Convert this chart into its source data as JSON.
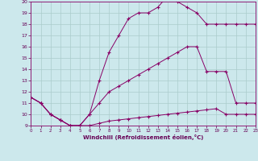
{
  "xlabel": "Windchill (Refroidissement éolien,°C)",
  "background_color": "#cce8ec",
  "grid_color": "#aacccc",
  "line_color": "#880066",
  "xlim": [
    0,
    23
  ],
  "ylim": [
    9,
    20
  ],
  "xticks": [
    0,
    1,
    2,
    3,
    4,
    5,
    6,
    7,
    8,
    9,
    10,
    11,
    12,
    13,
    14,
    15,
    16,
    17,
    18,
    19,
    20,
    21,
    22,
    23
  ],
  "yticks": [
    9,
    10,
    11,
    12,
    13,
    14,
    15,
    16,
    17,
    18,
    19,
    20
  ],
  "curve1_x": [
    0,
    1,
    2,
    3,
    4,
    5,
    6,
    7,
    8,
    9,
    10,
    11,
    12,
    13,
    14,
    15,
    16,
    17,
    18,
    19,
    20,
    21,
    22,
    23
  ],
  "curve1_y": [
    11.5,
    11.0,
    10.0,
    9.5,
    9.0,
    9.0,
    10.0,
    13.0,
    15.5,
    17.0,
    18.5,
    19.0,
    19.0,
    19.5,
    20.5,
    20.0,
    19.5,
    19.0,
    18.0,
    18.0,
    18.0,
    18.0,
    18.0,
    18.0
  ],
  "curve2_x": [
    0,
    1,
    2,
    3,
    4,
    5,
    6,
    7,
    8,
    9,
    10,
    11,
    12,
    13,
    14,
    15,
    16,
    17,
    18,
    19,
    20,
    21,
    22,
    23
  ],
  "curve2_y": [
    11.5,
    11.0,
    10.0,
    9.5,
    9.0,
    9.0,
    10.0,
    11.0,
    12.0,
    12.5,
    13.0,
    13.5,
    14.0,
    14.5,
    15.0,
    15.5,
    16.0,
    16.0,
    13.8,
    13.8,
    13.8,
    11.0,
    11.0,
    11.0
  ],
  "curve3_x": [
    0,
    1,
    2,
    3,
    4,
    5,
    6,
    7,
    8,
    9,
    10,
    11,
    12,
    13,
    14,
    15,
    16,
    17,
    18,
    19,
    20,
    21,
    22,
    23
  ],
  "curve3_y": [
    11.5,
    11.0,
    10.0,
    9.5,
    9.0,
    9.0,
    9.0,
    9.2,
    9.4,
    9.5,
    9.6,
    9.7,
    9.8,
    9.9,
    10.0,
    10.1,
    10.2,
    10.3,
    10.4,
    10.5,
    10.0,
    10.0,
    10.0,
    10.0
  ]
}
